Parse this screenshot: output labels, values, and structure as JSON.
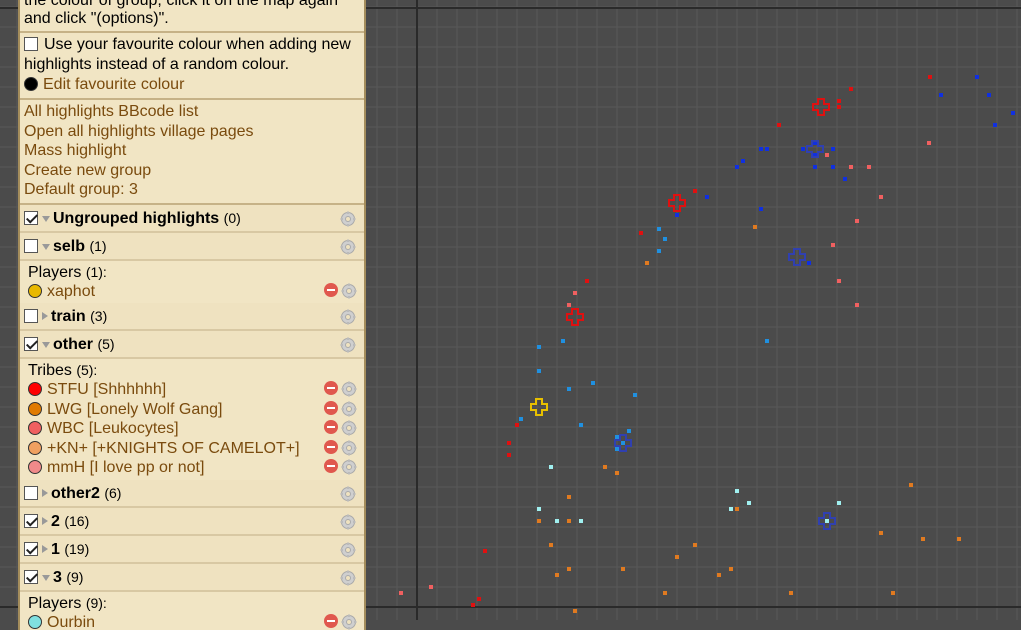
{
  "intro": {
    "text": "the colour of group, click it on the map again and click \"(options)\"."
  },
  "favourite": {
    "checkbox_label": "Use your favourite colour when adding new highlights instead of a random colour.",
    "edit_label": "Edit favourite colour",
    "color": "#000000"
  },
  "links": {
    "bbcode": "All highlights BBcode list",
    "open_pages": "Open all highlights village pages",
    "mass": "Mass highlight",
    "create_group": "Create new group",
    "default_group": "Default group: 3"
  },
  "groups": [
    {
      "name": "Ungrouped highlights",
      "count": "(0)",
      "checked": true,
      "expanded": true
    },
    {
      "name": "selb",
      "count": "(1)",
      "checked": false,
      "expanded": true,
      "sub_label": "Players",
      "sub_count": "(1):",
      "items": [
        {
          "label": "xaphot",
          "color": "#e8b800"
        }
      ]
    },
    {
      "name": "train",
      "count": "(3)",
      "checked": false,
      "expanded": false
    },
    {
      "name": "other",
      "count": "(5)",
      "checked": true,
      "expanded": true,
      "sub_label": "Tribes",
      "sub_count": "(5):",
      "items": [
        {
          "label": "STFU [Shhhhhh]",
          "color": "#ff0000"
        },
        {
          "label": "LWG [Lonely Wolf Gang]",
          "color": "#e07a00"
        },
        {
          "label": "WBC [Leukocytes]",
          "color": "#f06060"
        },
        {
          "label": "+KN+ [+KNIGHTS OF CAMELOT+]",
          "color": "#f0a060"
        },
        {
          "label": "mmH [I love pp or not]",
          "color": "#f08a8a"
        }
      ]
    },
    {
      "name": "other2",
      "count": "(6)",
      "checked": false,
      "expanded": false
    },
    {
      "name": "2",
      "count": "(16)",
      "checked": true,
      "expanded": false
    },
    {
      "name": "1",
      "count": "(19)",
      "checked": true,
      "expanded": false
    },
    {
      "name": "3",
      "count": "(9)",
      "checked": true,
      "expanded": true,
      "sub_label": "Players",
      "sub_count": "(9):",
      "items": [
        {
          "label": "Ourbin",
          "color": "#80e0e0"
        }
      ]
    }
  ],
  "map": {
    "background": "#4b4b4b",
    "grid_color": "#585858",
    "marker_colors": {
      "red": "#e01010",
      "blue": "#1030e0",
      "salmon": "#f06060",
      "orange": "#e07a20",
      "lightblue": "#2090e0",
      "cyan": "#a0f0f0",
      "yellow": "#e8c000",
      "navy": "#3040b0"
    }
  }
}
